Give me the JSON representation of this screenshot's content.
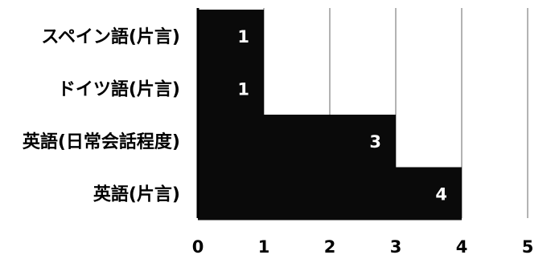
{
  "chart_data": {
    "type": "bar",
    "orientation": "horizontal",
    "categories": [
      "スペイン語(片言)",
      "ドイツ語(片言)",
      "英語(日常会話程度)",
      "英語(片言)"
    ],
    "values": [
      1,
      1,
      3,
      4
    ],
    "data_labels": [
      "1",
      "1",
      "3",
      "4"
    ],
    "xlim": [
      0,
      5
    ],
    "xticks": [
      "0",
      "1",
      "2",
      "3",
      "4",
      "5"
    ],
    "title": "",
    "xlabel": "",
    "ylabel": "",
    "grid": true,
    "colors": {
      "bar": "#0a0a0a",
      "grid": "#9a9a9a",
      "axis": "#000000",
      "text": "#000000",
      "data_label": "#ffffff"
    }
  }
}
